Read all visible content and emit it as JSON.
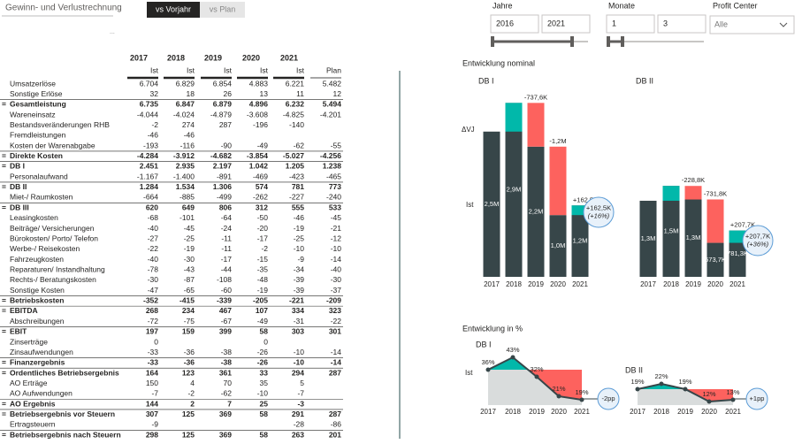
{
  "header": {
    "title": "Gewinn- und Verlustrechnung",
    "more": "..."
  },
  "toggle": {
    "options": [
      "vs Vorjahr",
      "vs Plan"
    ],
    "active": 0
  },
  "slicers": [
    {
      "title": "Jahre",
      "from": "2016",
      "to": "2021"
    },
    {
      "title": "Monate",
      "from": "1",
      "to": "3"
    }
  ],
  "profit_center": {
    "title": "Profit Center",
    "value": "Alle"
  },
  "sections": [
    "Entwicklung nominal",
    "Entwicklung in %"
  ],
  "table": {
    "years": [
      "2017",
      "2018",
      "2019",
      "2020",
      "2021"
    ],
    "subheaders": [
      "Ist",
      "Ist",
      "Ist",
      "Ist",
      "Ist",
      "Plan"
    ],
    "rows": [
      {
        "label": "Umsatzerlöse",
        "cells": [
          "6.704",
          "6.829",
          "6.854",
          "4.883",
          "6.221",
          "5.482"
        ]
      },
      {
        "label": "Sonstige Erlöse",
        "cells": [
          "32",
          "18",
          "26",
          "13",
          "11",
          "12"
        ]
      },
      {
        "marker": "=",
        "label": "Gesamtleistung",
        "bold": true,
        "cells": [
          "6.735",
          "6.847",
          "6.879",
          "4.896",
          "6.232",
          "5.494"
        ]
      },
      {
        "label": "Wareneinsatz",
        "cells": [
          "-4.044",
          "-4.024",
          "-4.879",
          "-3.608",
          "-4.825",
          "-4.201"
        ]
      },
      {
        "label": "Bestandsveränderungen RHB",
        "cells": [
          "-2",
          "274",
          "287",
          "-196",
          "-140",
          null
        ]
      },
      {
        "label": "Fremdleistungen",
        "cells": [
          "-46",
          "-46",
          null,
          null,
          null,
          null
        ]
      },
      {
        "label": "Kosten der Warenabgabe",
        "cells": [
          "-193",
          "-116",
          "-90",
          "-49",
          "-62",
          "-55"
        ]
      },
      {
        "marker": "=",
        "label": "Direkte Kosten",
        "bold": true,
        "cells": [
          "-4.284",
          "-3.912",
          "-4.682",
          "-3.854",
          "-5.027",
          "-4.256"
        ]
      },
      {
        "marker": "=",
        "label": "DB I",
        "bold": true,
        "cells": [
          "2.451",
          "2.935",
          "2.197",
          "1.042",
          "1.205",
          "1.238"
        ]
      },
      {
        "label": "Personalaufwand",
        "cells": [
          "-1.167",
          "-1.400",
          "-891",
          "-469",
          "-423",
          "-465"
        ]
      },
      {
        "marker": "=",
        "label": "DB II",
        "bold": true,
        "cells": [
          "1.284",
          "1.534",
          "1.306",
          "574",
          "781",
          "773"
        ]
      },
      {
        "label": "Miet-/ Raumkosten",
        "cells": [
          "-664",
          "-885",
          "-499",
          "-262",
          "-227",
          "-240"
        ]
      },
      {
        "marker": "=",
        "label": "DB III",
        "bold": true,
        "cells": [
          "620",
          "649",
          "806",
          "312",
          "555",
          "533"
        ]
      },
      {
        "label": "Leasingkosten",
        "cells": [
          "-68",
          "-101",
          "-64",
          "-50",
          "-46",
          "-45"
        ]
      },
      {
        "label": "Beiträge/ Versicherungen",
        "cells": [
          "-40",
          "-45",
          "-24",
          "-20",
          "-19",
          "-21"
        ]
      },
      {
        "label": "Bürokosten/ Porto/ Telefon",
        "cells": [
          "-27",
          "-25",
          "-11",
          "-17",
          "-25",
          "-12"
        ]
      },
      {
        "label": "Werbe-/ Reisekosten",
        "cells": [
          "-22",
          "-19",
          "-11",
          "-2",
          "-10",
          "-10"
        ]
      },
      {
        "label": "Fahrzeugkosten",
        "cells": [
          "-40",
          "-30",
          "-17",
          "-15",
          "-9",
          "-14"
        ]
      },
      {
        "label": "Reparaturen/ Instandhaltung",
        "cells": [
          "-78",
          "-43",
          "-44",
          "-35",
          "-34",
          "-40"
        ]
      },
      {
        "label": "Rechts-/ Beratungskosten",
        "cells": [
          "-30",
          "-87",
          "-108",
          "-48",
          "-39",
          "-30"
        ]
      },
      {
        "label": "Sonstige Kosten",
        "cells": [
          "-47",
          "-65",
          "-60",
          "-19",
          "-39",
          "-37"
        ]
      },
      {
        "marker": "=",
        "label": "Betriebskosten",
        "bold": true,
        "cells": [
          "-352",
          "-415",
          "-339",
          "-205",
          "-221",
          "-209"
        ]
      },
      {
        "marker": "=",
        "label": "EBITDA",
        "bold": true,
        "cells": [
          "268",
          "234",
          "467",
          "107",
          "334",
          "323"
        ]
      },
      {
        "label": "Abschreibungen",
        "cells": [
          "-72",
          "-75",
          "-67",
          "-49",
          "-31",
          "-22"
        ]
      },
      {
        "marker": "=",
        "label": "EBIT",
        "bold": true,
        "cells": [
          "197",
          "159",
          "399",
          "58",
          "303",
          "301"
        ]
      },
      {
        "label": "Zinserträge",
        "cells": [
          "0",
          null,
          null,
          "0",
          null,
          null
        ]
      },
      {
        "label": "Zinsaufwendungen",
        "cells": [
          "-33",
          "-36",
          "-38",
          "-26",
          "-10",
          "-14"
        ]
      },
      {
        "marker": "=",
        "label": "Finanzergebnis",
        "bold": true,
        "cells": [
          "-33",
          "-36",
          "-38",
          "-26",
          "-10",
          "-14"
        ]
      },
      {
        "marker": "=",
        "label": "Ordentliches Betriebsergebnis",
        "bold": true,
        "cells": [
          "164",
          "123",
          "361",
          "33",
          "294",
          "287"
        ]
      },
      {
        "label": "AO Erträge",
        "cells": [
          "150",
          "4",
          "70",
          "35",
          "5",
          null
        ]
      },
      {
        "label": "AO Aufwendungen",
        "cells": [
          "-7",
          "-2",
          "-62",
          "-10",
          "-7",
          null
        ]
      },
      {
        "marker": "=",
        "label": "AO Ergebnis",
        "bold": true,
        "cells": [
          "144",
          "2",
          "7",
          "25",
          "-3",
          null
        ]
      },
      {
        "marker": "=",
        "label": "Betriebsergebnis vor Steuern",
        "bold": true,
        "cells": [
          "307",
          "125",
          "369",
          "58",
          "291",
          "287"
        ]
      },
      {
        "label": "Ertragsteuern",
        "cells": [
          "-9",
          null,
          null,
          null,
          "-28",
          "-86"
        ]
      },
      {
        "marker": "=",
        "label": "Betriebsergebnis nach Steuern",
        "bold": true,
        "cells": [
          "298",
          "125",
          "369",
          "58",
          "263",
          "201"
        ]
      }
    ]
  },
  "chart_data": [
    {
      "type": "waterfall",
      "title": "DB I",
      "delta_label": "ΔVJ",
      "base_label": "Ist",
      "categories": [
        "2017",
        "2018",
        "2019",
        "2020",
        "2021"
      ],
      "values": [
        2451000,
        2935000,
        2197000,
        1042000,
        1205000
      ],
      "value_labels": [
        "2,5M",
        "2,9M",
        "2,2M",
        "1,0M",
        "1,2M"
      ],
      "deltas": [
        null,
        484000,
        -737600,
        -1155000,
        162500
      ],
      "delta_labels": [
        null,
        null,
        "-737,6K",
        "-1,2M",
        "+162,5K"
      ],
      "change_label": "+162,5K",
      "change_pct_label": "(+16%)",
      "ylim": [
        0,
        3000000
      ],
      "colors": {
        "base": "#374649",
        "up": "#01b8aa",
        "down": "#fd625e"
      }
    },
    {
      "type": "waterfall",
      "title": "DB II",
      "categories": [
        "2017",
        "2018",
        "2019",
        "2020",
        "2021"
      ],
      "values": [
        1284000,
        1534000,
        1306000,
        573700,
        781300
      ],
      "value_labels": [
        "1,3M",
        "1,5M",
        "1,3M",
        "573,7K",
        "781,3K"
      ],
      "deltas": [
        null,
        250000,
        -228800,
        -731800,
        207700
      ],
      "delta_labels": [
        null,
        null,
        "-228,8K",
        "-731,8K",
        "+207,7K"
      ],
      "change_label": "+207,7K",
      "change_pct_label": "(+36%)",
      "ylim": [
        0,
        3000000
      ],
      "colors": {
        "base": "#374649",
        "up": "#01b8aa",
        "down": "#fd625e"
      }
    },
    {
      "type": "line",
      "title": "DB I",
      "base_label": "Ist",
      "categories": [
        "2017",
        "2018",
        "2019",
        "2020",
        "2021"
      ],
      "values": [
        36,
        43,
        32,
        21,
        19
      ],
      "value_labels": [
        "36%",
        "43%",
        "32%",
        "21%",
        "19%"
      ],
      "change_label": "-2pp",
      "ylim": [
        16,
        45
      ],
      "colors": {
        "line": "#374649",
        "up": "#01b8aa",
        "down": "#fd625e",
        "area": "#d9dcdc"
      }
    },
    {
      "type": "line",
      "title": "DB II",
      "categories": [
        "2017",
        "2018",
        "2019",
        "2020",
        "2021"
      ],
      "values": [
        19,
        22,
        19,
        12,
        13
      ],
      "value_labels": [
        "19%",
        "22%",
        "19%",
        "12%",
        "13%"
      ],
      "change_label": "+1pp",
      "ylim": [
        10,
        25
      ],
      "colors": {
        "line": "#374649",
        "up": "#01b8aa",
        "down": "#fd625e",
        "area": "#d9dcdc"
      }
    }
  ]
}
